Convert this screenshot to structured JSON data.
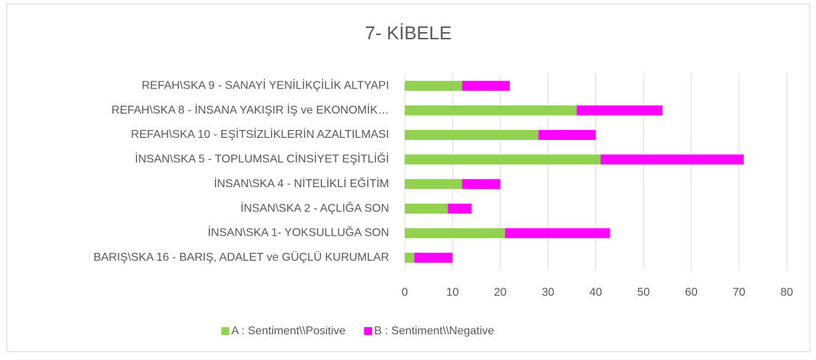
{
  "chart_data": {
    "type": "bar",
    "orientation": "horizontal",
    "stacked": true,
    "title": "7- KİBELE",
    "categories": [
      "REFAH\\SKA 9 -  SANAYİ YENİLİKÇİLİK ALTYAPI",
      "REFAH\\SKA 8 - İNSANA YAKIŞIR İŞ ve EKONOMİK…",
      "REFAH\\SKA 10 - EŞİTSİZLİKLERİN AZALTILMASI",
      "İNSAN\\SKA 5 - TOPLUMSAL CİNSİYET EŞİTLİĞİ",
      "İNSAN\\SKA 4 - NİTELİKLİ EĞİTİM",
      "İNSAN\\SKA 2 - AÇLIĞA SON",
      "İNSAN\\SKA 1- YOKSULLUĞA SON",
      "BARIŞ\\SKA 16 - BARIŞ, ADALET ve GÜÇLÜ KURUMLAR"
    ],
    "series": [
      {
        "name": "A : Sentiment\\\\Positive",
        "color": "#92d050",
        "values": [
          12,
          36,
          28,
          41,
          12,
          9,
          21,
          2
        ]
      },
      {
        "name": "B : Sentiment\\\\Negative",
        "color": "#ff00ff",
        "values": [
          10,
          18,
          12,
          30,
          8,
          5,
          22,
          8
        ]
      }
    ],
    "xlim": [
      0,
      80
    ],
    "xticks": [
      0,
      10,
      20,
      30,
      40,
      50,
      60,
      70,
      80
    ],
    "grid": true,
    "legend": "bottom"
  }
}
